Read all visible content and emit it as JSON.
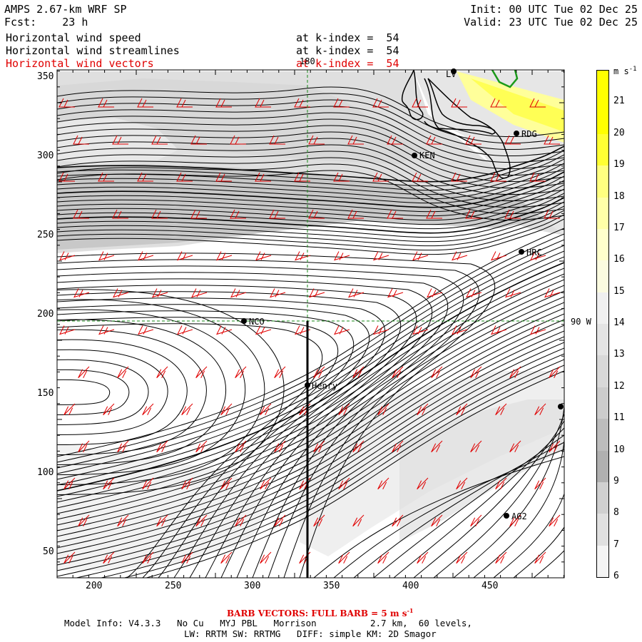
{
  "header": {
    "model": "AMPS 2.67-km WRF SP",
    "fcst_label": "Fcst:",
    "fcst_value": "23 h",
    "init": "Init: 00 UTC Tue 02 Dec 25",
    "valid": "Valid: 23 UTC Tue 02 Dec 25",
    "fields": [
      {
        "name": "Horizontal wind speed",
        "level": "at k-index =  54",
        "color": "#000000"
      },
      {
        "name": "Horizontal wind streamlines",
        "level": "at k-index =  54",
        "color": "#000000"
      },
      {
        "name": "Horizontal wind vectors",
        "level": "at k-index =  54",
        "color": "#e00000"
      }
    ]
  },
  "map": {
    "x_ticks": [
      "200",
      "250",
      "300",
      "350",
      "400",
      "450"
    ],
    "y_ticks": [
      "350",
      "300",
      "250",
      "200",
      "150",
      "100",
      "50"
    ],
    "meridian_label": "180",
    "parallel_label": "90 W",
    "stations": [
      {
        "name": "LV",
        "label": "LV"
      },
      {
        "name": "RDG",
        "label": "RDG"
      },
      {
        "name": "KEN",
        "label": "KEN"
      },
      {
        "name": "HRC",
        "label": "HRC"
      },
      {
        "name": "NCO",
        "label": "NCO"
      },
      {
        "name": "Henry",
        "label": "Henry"
      },
      {
        "name": "AG2",
        "label": "AG2"
      },
      {
        "name": "unnamed",
        "label": ""
      }
    ]
  },
  "colorbar": {
    "unit": "m s",
    "unit_exp": "-1",
    "levels": [
      "21",
      "20",
      "19",
      "18",
      "17",
      "16",
      "15",
      "14",
      "13",
      "12",
      "11",
      "10",
      "9",
      "8",
      "7",
      "6"
    ],
    "colors": [
      "#ffff00",
      "#ffff00",
      "#ffff33",
      "#ffff80",
      "#ffffa8",
      "#ffffcc",
      "#fbfbe0",
      "#f0f0f0",
      "#e4e4e4",
      "#d8d8d8",
      "#cccccc",
      "#bdbdbd",
      "#b0b0b0",
      "#d0d0d0",
      "#e0e0e0",
      "#f4f4f4"
    ]
  },
  "footer": {
    "barb_note": "BARB VECTORS:  FULL BARB = 5 m s",
    "barb_exp": "-1",
    "line1": "Model Info: V4.3.3   No Cu   MYJ PBL   Morrison          2.7 km,  60 levels,",
    "line2": "LW: RRTM SW: RRTMG   DIFF: simple KM: 2D Smagor"
  }
}
